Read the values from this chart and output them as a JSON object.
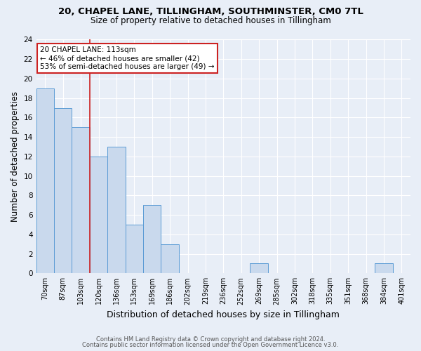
{
  "title_line1": "20, CHAPEL LANE, TILLINGHAM, SOUTHMINSTER, CM0 7TL",
  "title_line2": "Size of property relative to detached houses in Tillingham",
  "xlabel": "Distribution of detached houses by size in Tillingham",
  "ylabel": "Number of detached properties",
  "categories": [
    "70sqm",
    "87sqm",
    "103sqm",
    "120sqm",
    "136sqm",
    "153sqm",
    "169sqm",
    "186sqm",
    "202sqm",
    "219sqm",
    "236sqm",
    "252sqm",
    "269sqm",
    "285sqm",
    "302sqm",
    "318sqm",
    "335sqm",
    "351sqm",
    "368sqm",
    "384sqm",
    "401sqm"
  ],
  "values": [
    19,
    17,
    15,
    12,
    13,
    5,
    7,
    3,
    0,
    0,
    0,
    0,
    1,
    0,
    0,
    0,
    0,
    0,
    0,
    1,
    0
  ],
  "bar_color": "#c9d9ed",
  "bar_edge_color": "#5b9bd5",
  "background_color": "#e8eef7",
  "grid_color": "#ffffff",
  "vline_x": 2.5,
  "vline_color": "#cc2222",
  "ylim": [
    0,
    24
  ],
  "yticks": [
    0,
    2,
    4,
    6,
    8,
    10,
    12,
    14,
    16,
    18,
    20,
    22,
    24
  ],
  "annotation_title": "20 CHAPEL LANE: 113sqm",
  "annotation_line1": "← 46% of detached houses are smaller (42)",
  "annotation_line2": "53% of semi-detached houses are larger (49) →",
  "annotation_box_facecolor": "#ffffff",
  "annotation_box_edgecolor": "#cc2222",
  "footer_line1": "Contains HM Land Registry data © Crown copyright and database right 2024.",
  "footer_line2": "Contains public sector information licensed under the Open Government Licence v3.0.",
  "figsize": [
    6.0,
    5.0
  ],
  "dpi": 100
}
